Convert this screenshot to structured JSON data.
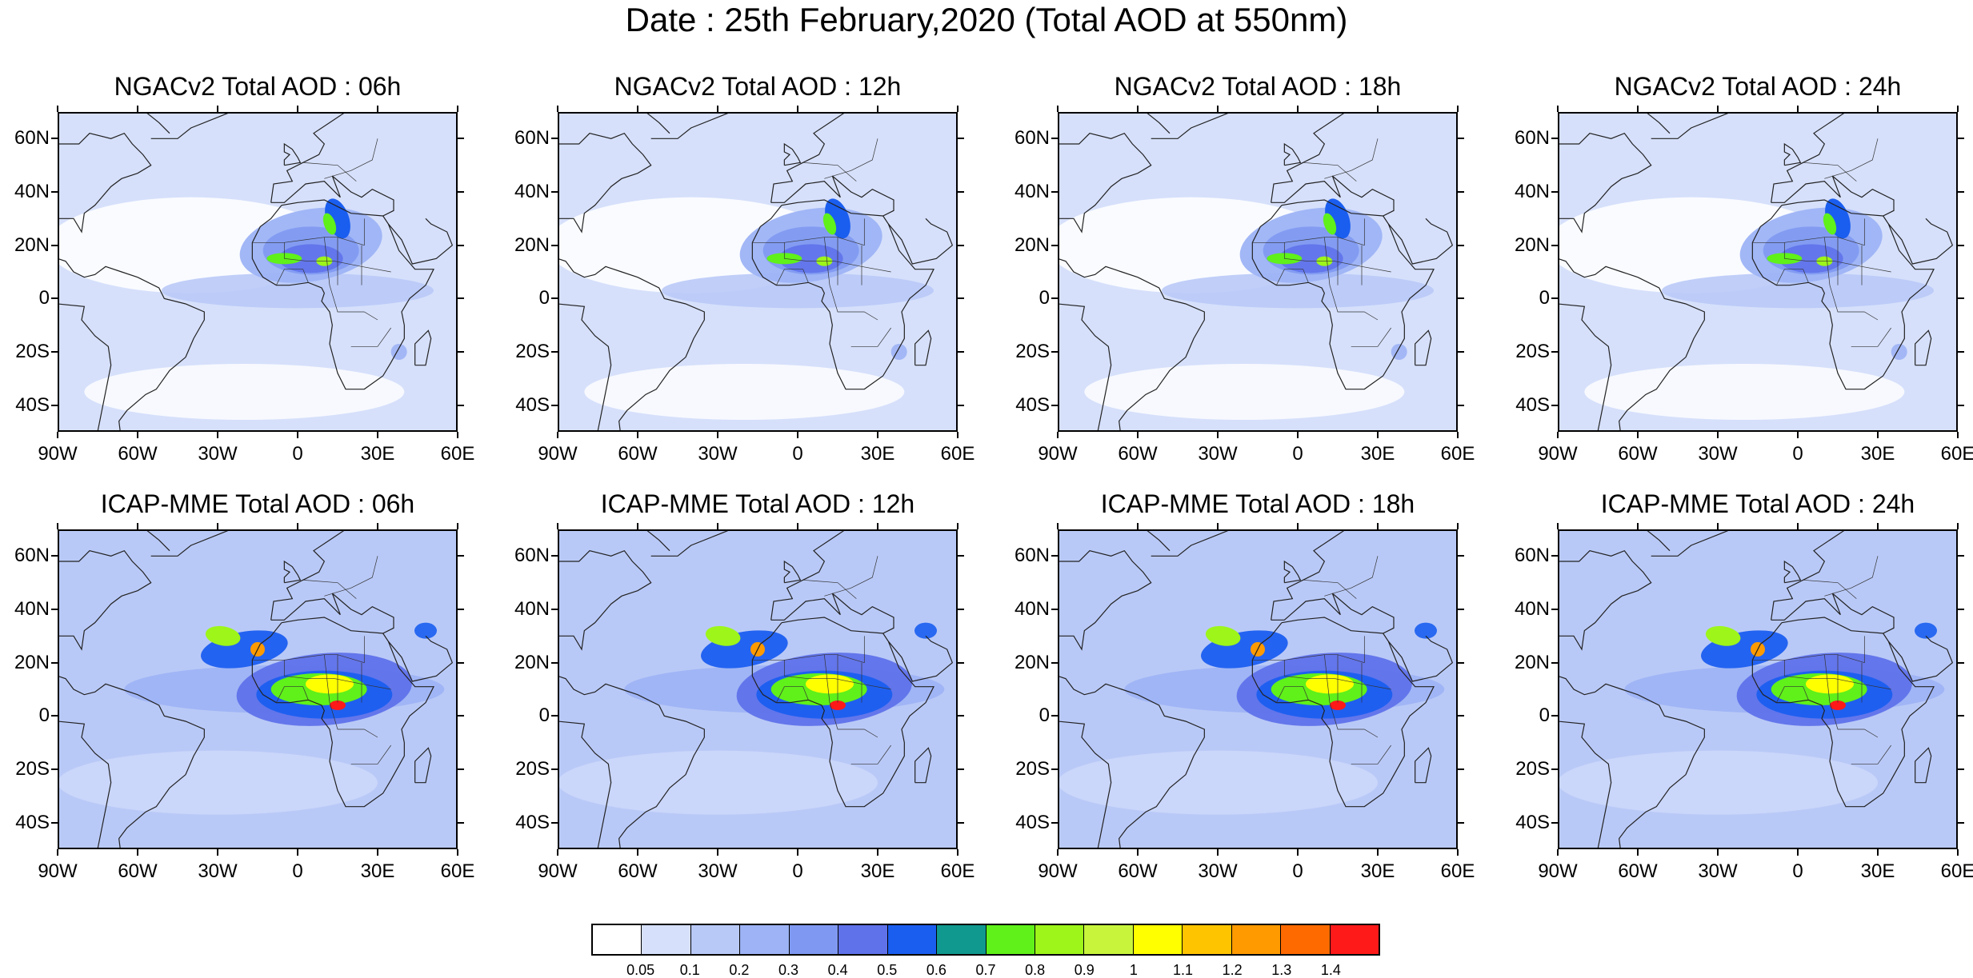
{
  "title": "Date : 25th February,2020 (Total AOD at 550nm)",
  "panels": [
    {
      "title": "NGACv2 Total AOD : 06h",
      "model": "NGACv2",
      "hour": "06h"
    },
    {
      "title": "NGACv2 Total AOD : 12h",
      "model": "NGACv2",
      "hour": "12h"
    },
    {
      "title": "NGACv2 Total AOD : 18h",
      "model": "NGACv2",
      "hour": "18h"
    },
    {
      "title": "NGACv2 Total AOD : 24h",
      "model": "NGACv2",
      "hour": "24h"
    },
    {
      "title": "ICAP-MME Total AOD : 06h",
      "model": "ICAP-MME",
      "hour": "06h"
    },
    {
      "title": "ICAP-MME Total AOD : 12h",
      "model": "ICAP-MME",
      "hour": "12h"
    },
    {
      "title": "ICAP-MME Total AOD : 18h",
      "model": "ICAP-MME",
      "hour": "18h"
    },
    {
      "title": "ICAP-MME Total AOD : 24h",
      "model": "ICAP-MME",
      "hour": "24h"
    }
  ],
  "lat_ticks": [
    "60N",
    "40N",
    "20N",
    "0",
    "20S",
    "40S"
  ],
  "lon_ticks": [
    "90W",
    "60W",
    "30W",
    "0",
    "30E",
    "60E"
  ],
  "colorbar": {
    "labels": [
      "0.05",
      "0.1",
      "0.2",
      "0.3",
      "0.4",
      "0.5",
      "0.6",
      "0.7",
      "0.8",
      "0.9",
      "1",
      "1.1",
      "1.2",
      "1.3",
      "1.4"
    ],
    "colors": [
      "#ffffff",
      "#d6e0fb",
      "#b9c9f7",
      "#9db3f5",
      "#7f99f2",
      "#5f72ea",
      "#1a5ef0",
      "#10998f",
      "#60f01a",
      "#9df51a",
      "#c8f53c",
      "#ffff00",
      "#ffc400",
      "#ff9a00",
      "#ff6a00",
      "#ff1a1a"
    ]
  }
}
